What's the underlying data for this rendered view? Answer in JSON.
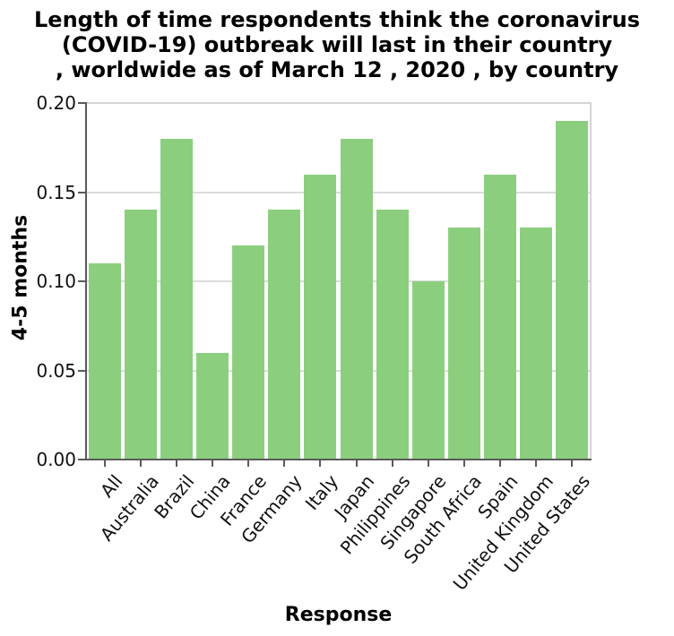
{
  "chart_data": {
    "type": "bar",
    "title": "Length of time respondents think the coronavirus (COVID-19) outbreak will last in their country , worldwide as of March 12 , 2020 , by country",
    "title_lines": [
      "Length of time respondents think the coronavirus",
      "(COVID-19) outbreak will last in their country",
      ", worldwide as of March 12 , 2020 , by country"
    ],
    "xlabel": "Response",
    "ylabel": "4-5 months",
    "categories": [
      "All",
      "Australia",
      "Brazil",
      "China",
      "France",
      "Germany",
      "Italy",
      "Japan",
      "Philippines",
      "Singapore",
      "South Africa",
      "Spain",
      "United Kingdom",
      "United States"
    ],
    "values": [
      0.11,
      0.14,
      0.18,
      0.06,
      0.12,
      0.14,
      0.16,
      0.18,
      0.14,
      0.1,
      0.13,
      0.16,
      0.13,
      0.19
    ],
    "ylim": [
      0,
      0.2
    ],
    "yticks": [
      0,
      0.05,
      0.1,
      0.15,
      0.2
    ],
    "ytick_labels": [
      "0.00",
      "0.05",
      "0.10",
      "0.15",
      "0.20"
    ],
    "grid": true,
    "legend": "none",
    "xtick_rotation_deg": 50,
    "colors": {
      "bar": "#8bcf7e",
      "gridline": "#dcdcdc",
      "box_border": "#d4d4d4",
      "spine": "#5a5a5a",
      "text": "#000000",
      "background": "#ffffff"
    }
  }
}
